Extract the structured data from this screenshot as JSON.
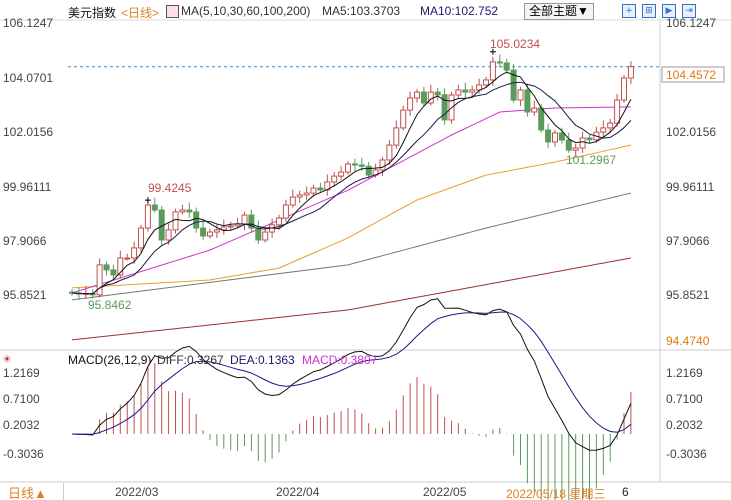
{
  "header": {
    "title": "美元指数",
    "period": "<日线>",
    "ma_label": "MA(5,10,30,60,100,200)",
    "ma5": "MA5:103.3703",
    "ma10": "MA10:102.752",
    "theme_button": "全部主题▼"
  },
  "macd_header": {
    "label": "MACD(26,12,9)",
    "diff": "DIFF:0.3267",
    "dea": "DEA:0.1363",
    "macd": "MACD:0.3807"
  },
  "footer": {
    "period_button": "日线▲",
    "dates": [
      "2022/03",
      "2022/04",
      "2022/05"
    ],
    "cursor_date": "2022/05/18 星期三",
    "cursor_extra": "6"
  },
  "colors": {
    "up": "#c0504d",
    "down": "#5a9a5a",
    "ma5": "#111111",
    "ma10": "#1a1a4a",
    "ma30": "#cc33cc",
    "ma60": "#e8a030",
    "ma100": "#777777",
    "ma200": "#a03030",
    "last_price": "#e07a10"
  },
  "icons": [
    "crosshair-icon",
    "zoom-icon",
    "play-icon",
    "exit-icon"
  ],
  "chart_data": [
    {
      "type": "candlestick",
      "title": "美元指数",
      "y_ticks_left": [
        "106.1247",
        "104.0701",
        "102.0156",
        "99.96111",
        "97.9066",
        "95.8521"
      ],
      "y_ticks_right": [
        "106.1247",
        "104.4572",
        "102.0156",
        "99.96111",
        "97.9066",
        "95.8521",
        "94.4740"
      ],
      "last_price": "104.4572",
      "bottom_right": "94.4740",
      "annotations": {
        "high1": "99.4245",
        "low1": "95.8462",
        "high2": "105.0234",
        "low2": "101.2967"
      },
      "closes": [
        95.92,
        95.88,
        95.9,
        95.85,
        96.98,
        96.79,
        96.6,
        97.24,
        97.24,
        97.62,
        98.37,
        99.24,
        99.05,
        97.92,
        98.3,
        98.98,
        99.05,
        98.98,
        98.37,
        98.07,
        98.22,
        98.3,
        98.41,
        98.45,
        98.52,
        98.86,
        98.37,
        97.92,
        98.22,
        98.49,
        98.75,
        99.24,
        99.54,
        99.62,
        99.69,
        99.88,
        99.81,
        100.11,
        100.33,
        100.48,
        100.79,
        100.75,
        100.7,
        100.37,
        100.56,
        100.94,
        101.5,
        102.15,
        102.82,
        103.28,
        103.5,
        103.09,
        103.5,
        103.4,
        102.45,
        103.39,
        103.58,
        103.5,
        103.58,
        103.77,
        103.96,
        104.64,
        104.6,
        104.33,
        103.2,
        103.58,
        102.75,
        102.9,
        102.07,
        101.62,
        101.96,
        101.69,
        101.31,
        101.39,
        101.77,
        101.7,
        101.99,
        102.15,
        102.33,
        103.2,
        104.03,
        104.46
      ],
      "ma_long": {
        "ma30": [
          [
            0,
            95.92
          ],
          [
            20,
            97.54
          ],
          [
            40,
            99.8
          ],
          [
            55,
            101.88
          ],
          [
            62,
            102.75
          ],
          [
            70,
            102.9
          ],
          [
            81,
            102.94
          ]
        ],
        "ma60": [
          [
            0,
            96.11
          ],
          [
            20,
            96.41
          ],
          [
            30,
            96.86
          ],
          [
            40,
            98.0
          ],
          [
            50,
            99.43
          ],
          [
            60,
            100.37
          ],
          [
            70,
            100.86
          ],
          [
            81,
            101.5
          ]
        ],
        "ma100": [
          [
            0,
            95.66
          ],
          [
            40,
            96.98
          ],
          [
            60,
            98.37
          ],
          [
            81,
            99.69
          ]
        ],
        "ma200": [
          [
            0,
            94.15
          ],
          [
            40,
            95.28
          ],
          [
            81,
            97.24
          ]
        ]
      }
    },
    {
      "type": "macd",
      "y_ticks": [
        "1.2169",
        "0.7100",
        "0.2032",
        "-0.3036"
      ]
    }
  ]
}
